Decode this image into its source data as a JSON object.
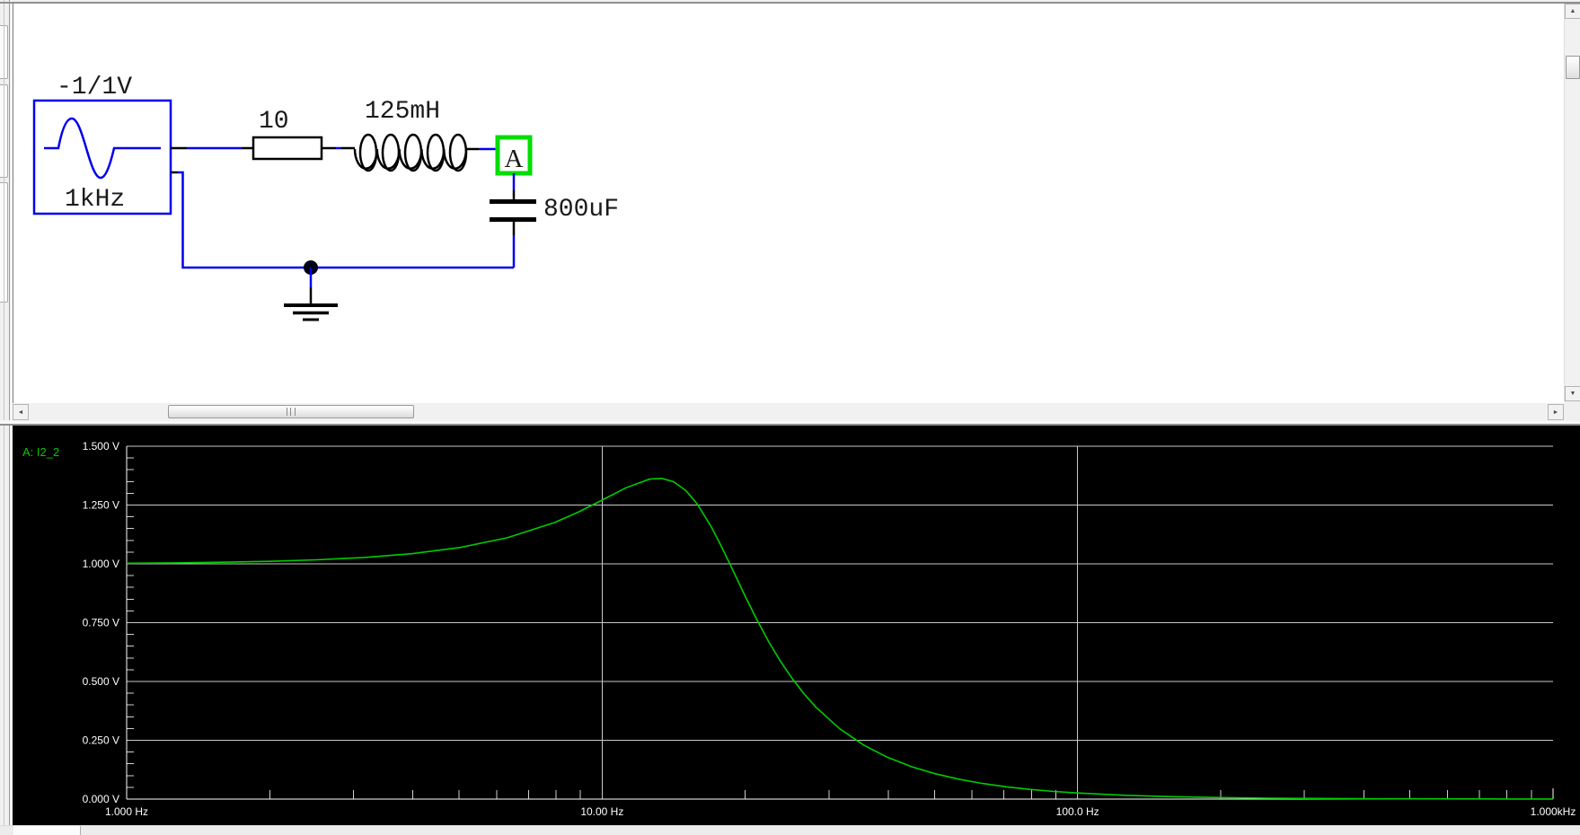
{
  "schematic": {
    "source_amplitude_label": "-1/1V",
    "source_frequency_label": "1kHz",
    "resistor_value": "10",
    "inductor_value": "125mH",
    "capacitor_value": "800uF",
    "node_label": "A",
    "wire_color": "#0000ee",
    "component_color": "#000000",
    "node_box_color": "#00dd00"
  },
  "icons": {
    "scroll_up": "▲",
    "scroll_down": "▼",
    "scroll_left": "◄",
    "scroll_right": "►"
  },
  "chart_data": {
    "type": "line",
    "x_scale": "log",
    "xlim": [
      1,
      1000
    ],
    "ylim": [
      0,
      1.5
    ],
    "background": "#000000",
    "grid_color": "#c8c8c8",
    "axis_color": "#ffffff",
    "tick_color": "#d0d0d0",
    "label_color": "#ffffff",
    "grid": true,
    "legend_position": "top-left",
    "y_ticks": [
      {
        "label": "1.500 V",
        "value": 1.5
      },
      {
        "label": "1.250 V",
        "value": 1.25
      },
      {
        "label": "1.000 V",
        "value": 1.0
      },
      {
        "label": "0.750 V",
        "value": 0.75
      },
      {
        "label": "0.500 V",
        "value": 0.5
      },
      {
        "label": "0.250 V",
        "value": 0.25
      },
      {
        "label": "0.000 V",
        "value": 0.0
      }
    ],
    "x_ticks": [
      {
        "label": "1.000 Hz",
        "value": 1
      },
      {
        "label": "10.00 Hz",
        "value": 10
      },
      {
        "label": "100.0 Hz",
        "value": 100
      },
      {
        "label": "1.000kHz",
        "value": 1000
      }
    ],
    "x_gridlines": [
      10,
      100
    ],
    "series": [
      {
        "name": "A: I2_2",
        "color": "#00cc00",
        "points": [
          [
            1.0,
            1.0027
          ],
          [
            1.26,
            1.0043
          ],
          [
            1.58,
            1.0067
          ],
          [
            2.0,
            1.0108
          ],
          [
            2.51,
            1.017
          ],
          [
            3.16,
            1.0271
          ],
          [
            3.98,
            1.0432
          ],
          [
            5.01,
            1.069
          ],
          [
            6.31,
            1.1105
          ],
          [
            7.94,
            1.1757
          ],
          [
            8.91,
            1.2199
          ],
          [
            10.0,
            1.2711
          ],
          [
            11.22,
            1.3233
          ],
          [
            12.59,
            1.3602
          ],
          [
            13.34,
            1.3632
          ],
          [
            14.13,
            1.3493
          ],
          [
            15.0,
            1.3119
          ],
          [
            15.85,
            1.2551
          ],
          [
            16.98,
            1.1566
          ],
          [
            17.78,
            1.0781
          ],
          [
            18.8,
            0.9762
          ],
          [
            19.95,
            0.8664
          ],
          [
            21.1,
            0.7672
          ],
          [
            22.39,
            0.6703
          ],
          [
            23.7,
            0.587
          ],
          [
            25.12,
            0.5117
          ],
          [
            26.6,
            0.447
          ],
          [
            28.18,
            0.3902
          ],
          [
            31.62,
            0.2986
          ],
          [
            35.48,
            0.2298
          ],
          [
            39.81,
            0.1778
          ],
          [
            44.67,
            0.1382
          ],
          [
            50.12,
            0.1079
          ],
          [
            56.23,
            0.0846
          ],
          [
            63.1,
            0.0664
          ],
          [
            70.79,
            0.0523
          ],
          [
            79.43,
            0.0413
          ],
          [
            89.13,
            0.0326
          ],
          [
            100.0,
            0.0258
          ],
          [
            125.9,
            0.0162
          ],
          [
            158.5,
            0.0102
          ],
          [
            199.5,
            0.0064
          ],
          [
            251.2,
            0.004
          ],
          [
            316.2,
            0.0025
          ],
          [
            398.1,
            0.0016
          ],
          [
            501.2,
            0.001
          ],
          [
            631.0,
            0.0006
          ],
          [
            794.3,
            0.0004
          ],
          [
            1000.0,
            0.0003
          ]
        ]
      }
    ]
  }
}
